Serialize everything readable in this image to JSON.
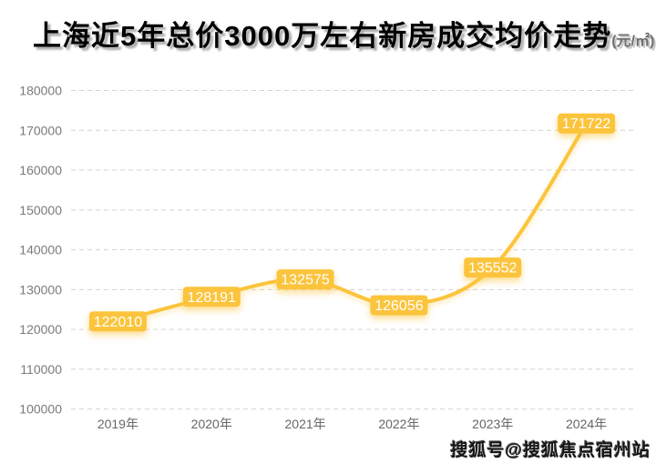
{
  "watermark": "搜狐号@搜狐焦点宿州站",
  "chart_data": {
    "type": "line",
    "title": "上海近5年总价3000万左右新房成交均价走势",
    "unit": "(元/㎡)",
    "categories": [
      "2019年",
      "2020年",
      "2021年",
      "2022年",
      "2023年",
      "2024年"
    ],
    "values": [
      122010,
      128191,
      132575,
      126056,
      135552,
      171722
    ],
    "yticks": [
      100000,
      110000,
      120000,
      130000,
      140000,
      150000,
      160000,
      170000,
      180000
    ],
    "ylim": [
      100000,
      180000
    ],
    "smooth": true,
    "grid": "horizontal-dashed",
    "legend_position": "none",
    "colors": {
      "line": "#FBC43C",
      "label_bg": "#FBC43C",
      "label_text": "#FFFFFF",
      "gridline": "#D4D4D4",
      "ytick_text": "#7A7A7A",
      "xtick_text": "#666666"
    }
  }
}
